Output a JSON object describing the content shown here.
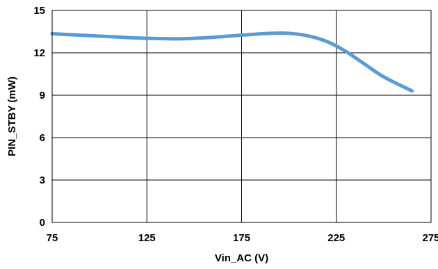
{
  "chart_data": {
    "type": "line",
    "title": "",
    "xlabel": "Vin_AC (V)",
    "ylabel": "PIN_STBY (mW)",
    "xlim": [
      75,
      275
    ],
    "ylim": [
      0,
      15
    ],
    "x_ticks": [
      75,
      125,
      175,
      225,
      275
    ],
    "y_ticks": [
      0,
      3,
      6,
      9,
      12,
      15
    ],
    "grid": true,
    "legend": "none",
    "series": [
      {
        "color": "#5B9BD5",
        "x": [
          75,
          90,
          105,
          120,
          135,
          145,
          160,
          175,
          190,
          200,
          210,
          220,
          230,
          240,
          250,
          265
        ],
        "y": [
          13.35,
          13.25,
          13.15,
          13.05,
          13.0,
          13.0,
          13.1,
          13.25,
          13.38,
          13.38,
          13.2,
          12.8,
          12.1,
          11.2,
          10.3,
          9.3
        ]
      }
    ]
  }
}
